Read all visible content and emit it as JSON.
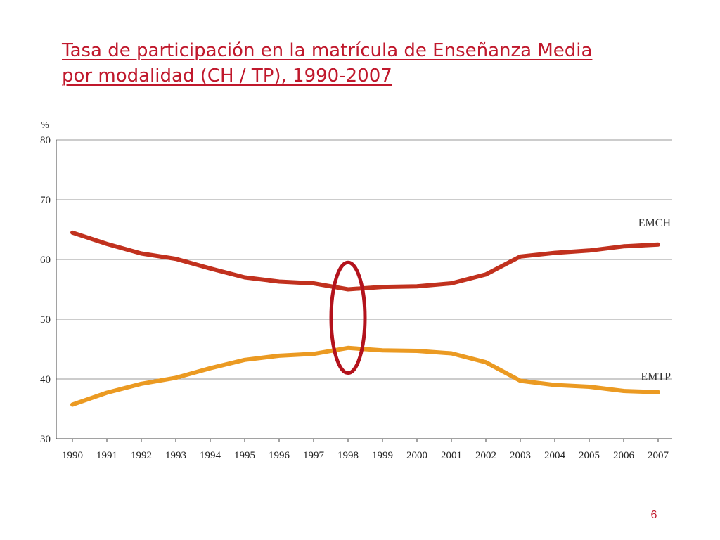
{
  "slide": {
    "title_line1": "Tasa de participación en la matrícula de Enseñanza Media",
    "title_line2": "por modalidad (CH / TP), 1990-2007",
    "page_number": "6"
  },
  "colors": {
    "title": "#c0182c",
    "emch": "#c1311e",
    "emtp": "#eb9a22",
    "highlight": "#b3121c",
    "grid": "#9a9a9a"
  },
  "chart_data": {
    "type": "line",
    "y_unit": "%",
    "ylim": [
      30,
      80
    ],
    "yticks": [
      30,
      40,
      50,
      60,
      70,
      80
    ],
    "grid": true,
    "categories": [
      "1990",
      "1991",
      "1992",
      "1993",
      "1994",
      "1995",
      "1996",
      "1997",
      "1998",
      "1999",
      "2000",
      "2001",
      "2002",
      "2003",
      "2004",
      "2005",
      "2006",
      "2007"
    ],
    "series": [
      {
        "name": "EMCH",
        "values": [
          64.5,
          62.6,
          61.0,
          60.1,
          58.5,
          57.0,
          56.3,
          56.0,
          55.0,
          55.4,
          55.5,
          56.0,
          57.5,
          60.5,
          61.1,
          61.5,
          62.2,
          62.5
        ]
      },
      {
        "name": "EMTP",
        "values": [
          35.7,
          37.7,
          39.2,
          40.2,
          41.8,
          43.2,
          43.9,
          44.2,
          45.2,
          44.8,
          44.7,
          44.3,
          42.8,
          39.7,
          39.0,
          38.7,
          38.0,
          37.8
        ]
      }
    ],
    "annotation": {
      "type": "ellipse",
      "category": "1998",
      "y_range": [
        41,
        59.5
      ]
    }
  }
}
